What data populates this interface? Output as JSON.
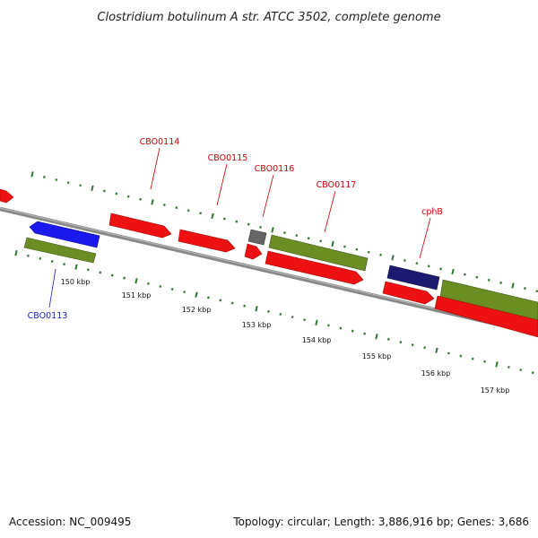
{
  "title": "Clostridium botulinum A str. ATCC 3502, complete genome",
  "footer": {
    "accession": "Accession: NC_009495",
    "summary": "Topology: circular; Length: 3,886,916 bp; Genes: 3,686"
  },
  "scale": {
    "unit": "kbp",
    "tick_labels": [
      {
        "kbp": 150,
        "label": "150 kbp"
      },
      {
        "kbp": 151,
        "label": "151 kbp"
      },
      {
        "kbp": 152,
        "label": "152 kbp"
      },
      {
        "kbp": 153,
        "label": "153 kbp"
      },
      {
        "kbp": 154,
        "label": "154 kbp"
      },
      {
        "kbp": 155,
        "label": "155 kbp"
      },
      {
        "kbp": 156,
        "label": "156 kbp"
      },
      {
        "kbp": 157,
        "label": "157 kbp"
      }
    ]
  },
  "colors": {
    "cds": "#ee1111",
    "gene_blue": "#1a1aee",
    "olive": "#6b8e23",
    "grey_feature": "#666666",
    "navy": "#1a1a70",
    "backbone": "#888888",
    "tick": "#2a7a2a",
    "label_red": "#cc0000",
    "label_blue": "#1a1acc"
  },
  "gene_labels": [
    {
      "name": "CBO0113",
      "color": "label_blue"
    },
    {
      "name": "CBO0114",
      "color": "label_red"
    },
    {
      "name": "CBO0115",
      "color": "label_red"
    },
    {
      "name": "CBO0116",
      "color": "label_red"
    },
    {
      "name": "CBO0117",
      "color": "label_red"
    },
    {
      "name": "cphB",
      "color": "label_red"
    }
  ]
}
